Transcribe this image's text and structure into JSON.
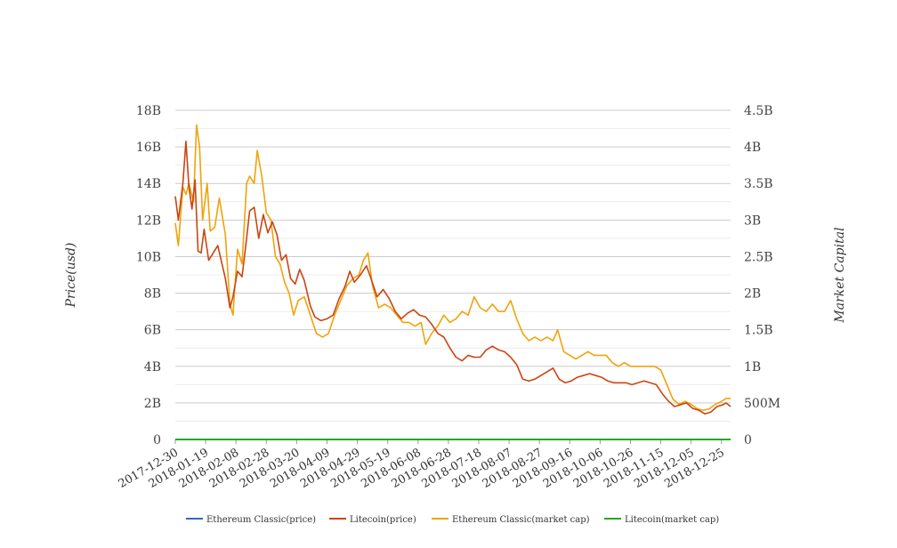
{
  "chart_data": {
    "type": "line",
    "ylabel": "Price(usd)",
    "ylabel_right": "Market Capital",
    "x_tick_labels": [
      "2017-12-30",
      "2018-01-19",
      "2018-02-08",
      "2018-02-28",
      "2018-03-20",
      "2018-04-09",
      "2018-04-29",
      "2018-05-19",
      "2018-06-08",
      "2018-06-28",
      "2018-07-18",
      "2018-08-07",
      "2018-08-27",
      "2018-09-16",
      "2018-10-06",
      "2018-10-26",
      "2018-11-15",
      "2018-12-05",
      "2018-12-25"
    ],
    "x_range": [
      "2017-12-30",
      "2018-12-31"
    ],
    "y_left": {
      "range": [
        0,
        18000000000
      ],
      "ticks": [
        0,
        2000000000,
        4000000000,
        6000000000,
        8000000000,
        10000000000,
        12000000000,
        14000000000,
        16000000000,
        18000000000
      ],
      "tick_labels": [
        "0",
        "2B",
        "4B",
        "6B",
        "8B",
        "10B",
        "12B",
        "14B",
        "16B",
        "18B"
      ]
    },
    "y_right": {
      "range": [
        0,
        4500000000
      ],
      "ticks": [
        0,
        500000000,
        1000000000,
        1500000000,
        2000000000,
        2500000000,
        3000000000,
        3500000000,
        4000000000,
        4500000000
      ],
      "tick_labels": [
        "0",
        "500M",
        "1B",
        "1.5B",
        "2B",
        "2.5B",
        "3B",
        "3.5B",
        "4B",
        "4.5B"
      ]
    },
    "grid": true,
    "legend_position": "bottom",
    "series": [
      {
        "name": "Ethereum Classic(price)",
        "axis": "left",
        "color": "#3366cc",
        "points": [
          [
            "2017-12-30",
            30
          ],
          [
            "2018-06-30",
            15
          ],
          [
            "2018-12-31",
            4
          ]
        ]
      },
      {
        "name": "Litecoin(price)",
        "axis": "left",
        "color": "#cc4411",
        "points": [
          [
            "2017-12-30",
            13300000000
          ],
          [
            "2018-01-01",
            12000000000
          ],
          [
            "2018-01-04",
            14000000000
          ],
          [
            "2018-01-06",
            16300000000
          ],
          [
            "2018-01-08",
            13800000000
          ],
          [
            "2018-01-10",
            12600000000
          ],
          [
            "2018-01-12",
            14200000000
          ],
          [
            "2018-01-14",
            10300000000
          ],
          [
            "2018-01-16",
            10200000000
          ],
          [
            "2018-01-18",
            11500000000
          ],
          [
            "2018-01-21",
            9800000000
          ],
          [
            "2018-01-24",
            10200000000
          ],
          [
            "2018-01-27",
            10600000000
          ],
          [
            "2018-02-01",
            8800000000
          ],
          [
            "2018-02-04",
            7200000000
          ],
          [
            "2018-02-06",
            7800000000
          ],
          [
            "2018-02-09",
            9200000000
          ],
          [
            "2018-02-12",
            8900000000
          ],
          [
            "2018-02-15",
            11000000000
          ],
          [
            "2018-02-17",
            12500000000
          ],
          [
            "2018-02-20",
            12700000000
          ],
          [
            "2018-02-23",
            11000000000
          ],
          [
            "2018-02-26",
            12300000000
          ],
          [
            "2018-03-01",
            11300000000
          ],
          [
            "2018-03-04",
            11900000000
          ],
          [
            "2018-03-07",
            11200000000
          ],
          [
            "2018-03-10",
            9800000000
          ],
          [
            "2018-03-13",
            10100000000
          ],
          [
            "2018-03-16",
            8800000000
          ],
          [
            "2018-03-19",
            8500000000
          ],
          [
            "2018-03-22",
            9300000000
          ],
          [
            "2018-03-25",
            8700000000
          ],
          [
            "2018-03-29",
            7300000000
          ],
          [
            "2018-04-01",
            6700000000
          ],
          [
            "2018-04-05",
            6500000000
          ],
          [
            "2018-04-09",
            6600000000
          ],
          [
            "2018-04-13",
            6800000000
          ],
          [
            "2018-04-17",
            7700000000
          ],
          [
            "2018-04-21",
            8400000000
          ],
          [
            "2018-04-24",
            9200000000
          ],
          [
            "2018-04-27",
            8600000000
          ],
          [
            "2018-05-01",
            9000000000
          ],
          [
            "2018-05-05",
            9500000000
          ],
          [
            "2018-05-08",
            8800000000
          ],
          [
            "2018-05-12",
            7800000000
          ],
          [
            "2018-05-16",
            8200000000
          ],
          [
            "2018-05-20",
            7700000000
          ],
          [
            "2018-05-24",
            7000000000
          ],
          [
            "2018-05-28",
            6600000000
          ],
          [
            "2018-06-01",
            6900000000
          ],
          [
            "2018-06-05",
            7100000000
          ],
          [
            "2018-06-09",
            6800000000
          ],
          [
            "2018-06-13",
            6700000000
          ],
          [
            "2018-06-17",
            6300000000
          ],
          [
            "2018-06-21",
            5800000000
          ],
          [
            "2018-06-25",
            5600000000
          ],
          [
            "2018-06-29",
            5000000000
          ],
          [
            "2018-07-03",
            4500000000
          ],
          [
            "2018-07-07",
            4300000000
          ],
          [
            "2018-07-11",
            4600000000
          ],
          [
            "2018-07-15",
            4500000000
          ],
          [
            "2018-07-19",
            4500000000
          ],
          [
            "2018-07-23",
            4900000000
          ],
          [
            "2018-07-27",
            5100000000
          ],
          [
            "2018-07-31",
            4900000000
          ],
          [
            "2018-08-04",
            4800000000
          ],
          [
            "2018-08-08",
            4500000000
          ],
          [
            "2018-08-12",
            4100000000
          ],
          [
            "2018-08-16",
            3300000000
          ],
          [
            "2018-08-20",
            3200000000
          ],
          [
            "2018-08-24",
            3300000000
          ],
          [
            "2018-08-28",
            3500000000
          ],
          [
            "2018-09-01",
            3700000000
          ],
          [
            "2018-09-05",
            3900000000
          ],
          [
            "2018-09-09",
            3300000000
          ],
          [
            "2018-09-13",
            3100000000
          ],
          [
            "2018-09-17",
            3200000000
          ],
          [
            "2018-09-21",
            3400000000
          ],
          [
            "2018-09-25",
            3500000000
          ],
          [
            "2018-09-29",
            3600000000
          ],
          [
            "2018-10-03",
            3500000000
          ],
          [
            "2018-10-07",
            3400000000
          ],
          [
            "2018-10-11",
            3200000000
          ],
          [
            "2018-10-15",
            3100000000
          ],
          [
            "2018-10-19",
            3100000000
          ],
          [
            "2018-10-23",
            3100000000
          ],
          [
            "2018-10-27",
            3000000000
          ],
          [
            "2018-10-31",
            3100000000
          ],
          [
            "2018-11-04",
            3200000000
          ],
          [
            "2018-11-08",
            3100000000
          ],
          [
            "2018-11-12",
            3000000000
          ],
          [
            "2018-11-16",
            2500000000
          ],
          [
            "2018-11-20",
            2100000000
          ],
          [
            "2018-11-24",
            1800000000
          ],
          [
            "2018-11-28",
            1900000000
          ],
          [
            "2018-12-02",
            2000000000
          ],
          [
            "2018-12-06",
            1700000000
          ],
          [
            "2018-12-10",
            1600000000
          ],
          [
            "2018-12-14",
            1400000000
          ],
          [
            "2018-12-18",
            1500000000
          ],
          [
            "2018-12-22",
            1800000000
          ],
          [
            "2018-12-26",
            1900000000
          ],
          [
            "2018-12-28",
            2000000000
          ],
          [
            "2018-12-31",
            1800000000
          ]
        ]
      },
      {
        "name": "Ethereum Classic(market cap)",
        "axis": "right",
        "color": "#f0a30a",
        "points": [
          [
            "2017-12-30",
            2960000000
          ],
          [
            "2018-01-01",
            2650000000
          ],
          [
            "2018-01-04",
            3450000000
          ],
          [
            "2018-01-06",
            3350000000
          ],
          [
            "2018-01-08",
            3500000000
          ],
          [
            "2018-01-11",
            3250000000
          ],
          [
            "2018-01-13",
            4300000000
          ],
          [
            "2018-01-15",
            4000000000
          ],
          [
            "2018-01-17",
            3000000000
          ],
          [
            "2018-01-20",
            3500000000
          ],
          [
            "2018-01-22",
            2850000000
          ],
          [
            "2018-01-25",
            2900000000
          ],
          [
            "2018-01-28",
            3300000000
          ],
          [
            "2018-02-01",
            2800000000
          ],
          [
            "2018-02-04",
            1850000000
          ],
          [
            "2018-02-06",
            1700000000
          ],
          [
            "2018-02-09",
            2600000000
          ],
          [
            "2018-02-12",
            2400000000
          ],
          [
            "2018-02-15",
            3500000000
          ],
          [
            "2018-02-17",
            3600000000
          ],
          [
            "2018-02-20",
            3500000000
          ],
          [
            "2018-02-22",
            3950000000
          ],
          [
            "2018-02-25",
            3600000000
          ],
          [
            "2018-02-28",
            3100000000
          ],
          [
            "2018-03-03",
            3000000000
          ],
          [
            "2018-03-06",
            2500000000
          ],
          [
            "2018-03-09",
            2400000000
          ],
          [
            "2018-03-12",
            2150000000
          ],
          [
            "2018-03-15",
            2000000000
          ],
          [
            "2018-03-18",
            1700000000
          ],
          [
            "2018-03-21",
            1900000000
          ],
          [
            "2018-03-25",
            1950000000
          ],
          [
            "2018-03-29",
            1700000000
          ],
          [
            "2018-04-02",
            1450000000
          ],
          [
            "2018-04-06",
            1400000000
          ],
          [
            "2018-04-10",
            1450000000
          ],
          [
            "2018-04-14",
            1700000000
          ],
          [
            "2018-04-18",
            1900000000
          ],
          [
            "2018-04-22",
            2100000000
          ],
          [
            "2018-04-26",
            2200000000
          ],
          [
            "2018-04-30",
            2250000000
          ],
          [
            "2018-05-03",
            2450000000
          ],
          [
            "2018-05-06",
            2550000000
          ],
          [
            "2018-05-09",
            2100000000
          ],
          [
            "2018-05-13",
            1800000000
          ],
          [
            "2018-05-17",
            1850000000
          ],
          [
            "2018-05-21",
            1800000000
          ],
          [
            "2018-05-25",
            1700000000
          ],
          [
            "2018-05-29",
            1600000000
          ],
          [
            "2018-06-02",
            1600000000
          ],
          [
            "2018-06-06",
            1550000000
          ],
          [
            "2018-06-10",
            1600000000
          ],
          [
            "2018-06-13",
            1300000000
          ],
          [
            "2018-06-17",
            1450000000
          ],
          [
            "2018-06-21",
            1550000000
          ],
          [
            "2018-06-25",
            1700000000
          ],
          [
            "2018-06-29",
            1600000000
          ],
          [
            "2018-07-03",
            1650000000
          ],
          [
            "2018-07-07",
            1750000000
          ],
          [
            "2018-07-11",
            1700000000
          ],
          [
            "2018-07-15",
            1950000000
          ],
          [
            "2018-07-19",
            1800000000
          ],
          [
            "2018-07-23",
            1750000000
          ],
          [
            "2018-07-27",
            1850000000
          ],
          [
            "2018-07-31",
            1750000000
          ],
          [
            "2018-08-04",
            1750000000
          ],
          [
            "2018-08-08",
            1900000000
          ],
          [
            "2018-08-12",
            1650000000
          ],
          [
            "2018-08-16",
            1450000000
          ],
          [
            "2018-08-20",
            1350000000
          ],
          [
            "2018-08-24",
            1400000000
          ],
          [
            "2018-08-28",
            1350000000
          ],
          [
            "2018-09-01",
            1400000000
          ],
          [
            "2018-09-05",
            1350000000
          ],
          [
            "2018-09-08",
            1500000000
          ],
          [
            "2018-09-12",
            1200000000
          ],
          [
            "2018-09-16",
            1150000000
          ],
          [
            "2018-09-20",
            1100000000
          ],
          [
            "2018-09-24",
            1150000000
          ],
          [
            "2018-09-28",
            1200000000
          ],
          [
            "2018-10-02",
            1150000000
          ],
          [
            "2018-10-06",
            1150000000
          ],
          [
            "2018-10-10",
            1150000000
          ],
          [
            "2018-10-14",
            1050000000
          ],
          [
            "2018-10-18",
            1000000000
          ],
          [
            "2018-10-22",
            1050000000
          ],
          [
            "2018-10-26",
            1000000000
          ],
          [
            "2018-10-30",
            1000000000
          ],
          [
            "2018-11-03",
            1000000000
          ],
          [
            "2018-11-07",
            1000000000
          ],
          [
            "2018-11-11",
            1000000000
          ],
          [
            "2018-11-15",
            950000000
          ],
          [
            "2018-11-19",
            750000000
          ],
          [
            "2018-11-23",
            550000000
          ],
          [
            "2018-11-27",
            480000000
          ],
          [
            "2018-12-01",
            520000000
          ],
          [
            "2018-12-05",
            480000000
          ],
          [
            "2018-12-09",
            420000000
          ],
          [
            "2018-12-13",
            400000000
          ],
          [
            "2018-12-17",
            420000000
          ],
          [
            "2018-12-21",
            480000000
          ],
          [
            "2018-12-25",
            520000000
          ],
          [
            "2018-12-28",
            560000000
          ],
          [
            "2018-12-31",
            560000000
          ]
        ]
      },
      {
        "name": "Litecoin(market cap)",
        "axis": "right",
        "color": "#22aa22",
        "points": [
          [
            "2017-12-30",
            0
          ],
          [
            "2018-12-31",
            0
          ]
        ]
      }
    ]
  }
}
